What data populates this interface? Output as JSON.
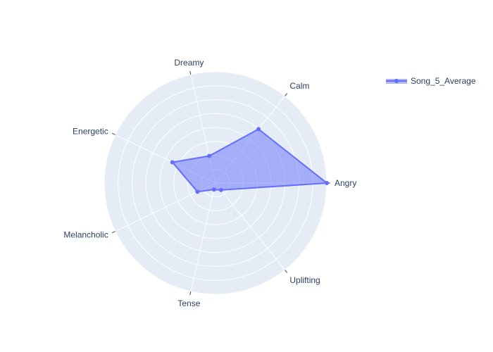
{
  "chart_data": {
    "type": "radar",
    "categories": [
      "Angry",
      "Calm",
      "Dreamy",
      "Energetic",
      "Melancholic",
      "Tense",
      "Uplifting"
    ],
    "series": [
      {
        "name": "Song_5_Average",
        "values": [
          1.0,
          0.62,
          0.25,
          0.43,
          0.18,
          0.06,
          0.08
        ]
      }
    ],
    "radial_range": [
      0,
      1
    ],
    "rings": 8,
    "grid": true,
    "legend_position": "top-right",
    "colors": {
      "line": "#636efa",
      "fill": "#636efa",
      "polar_bg": "#e5ecf6",
      "grid": "#ffffff",
      "axis_text": "#2a3f5f",
      "tick": "#444444"
    }
  }
}
